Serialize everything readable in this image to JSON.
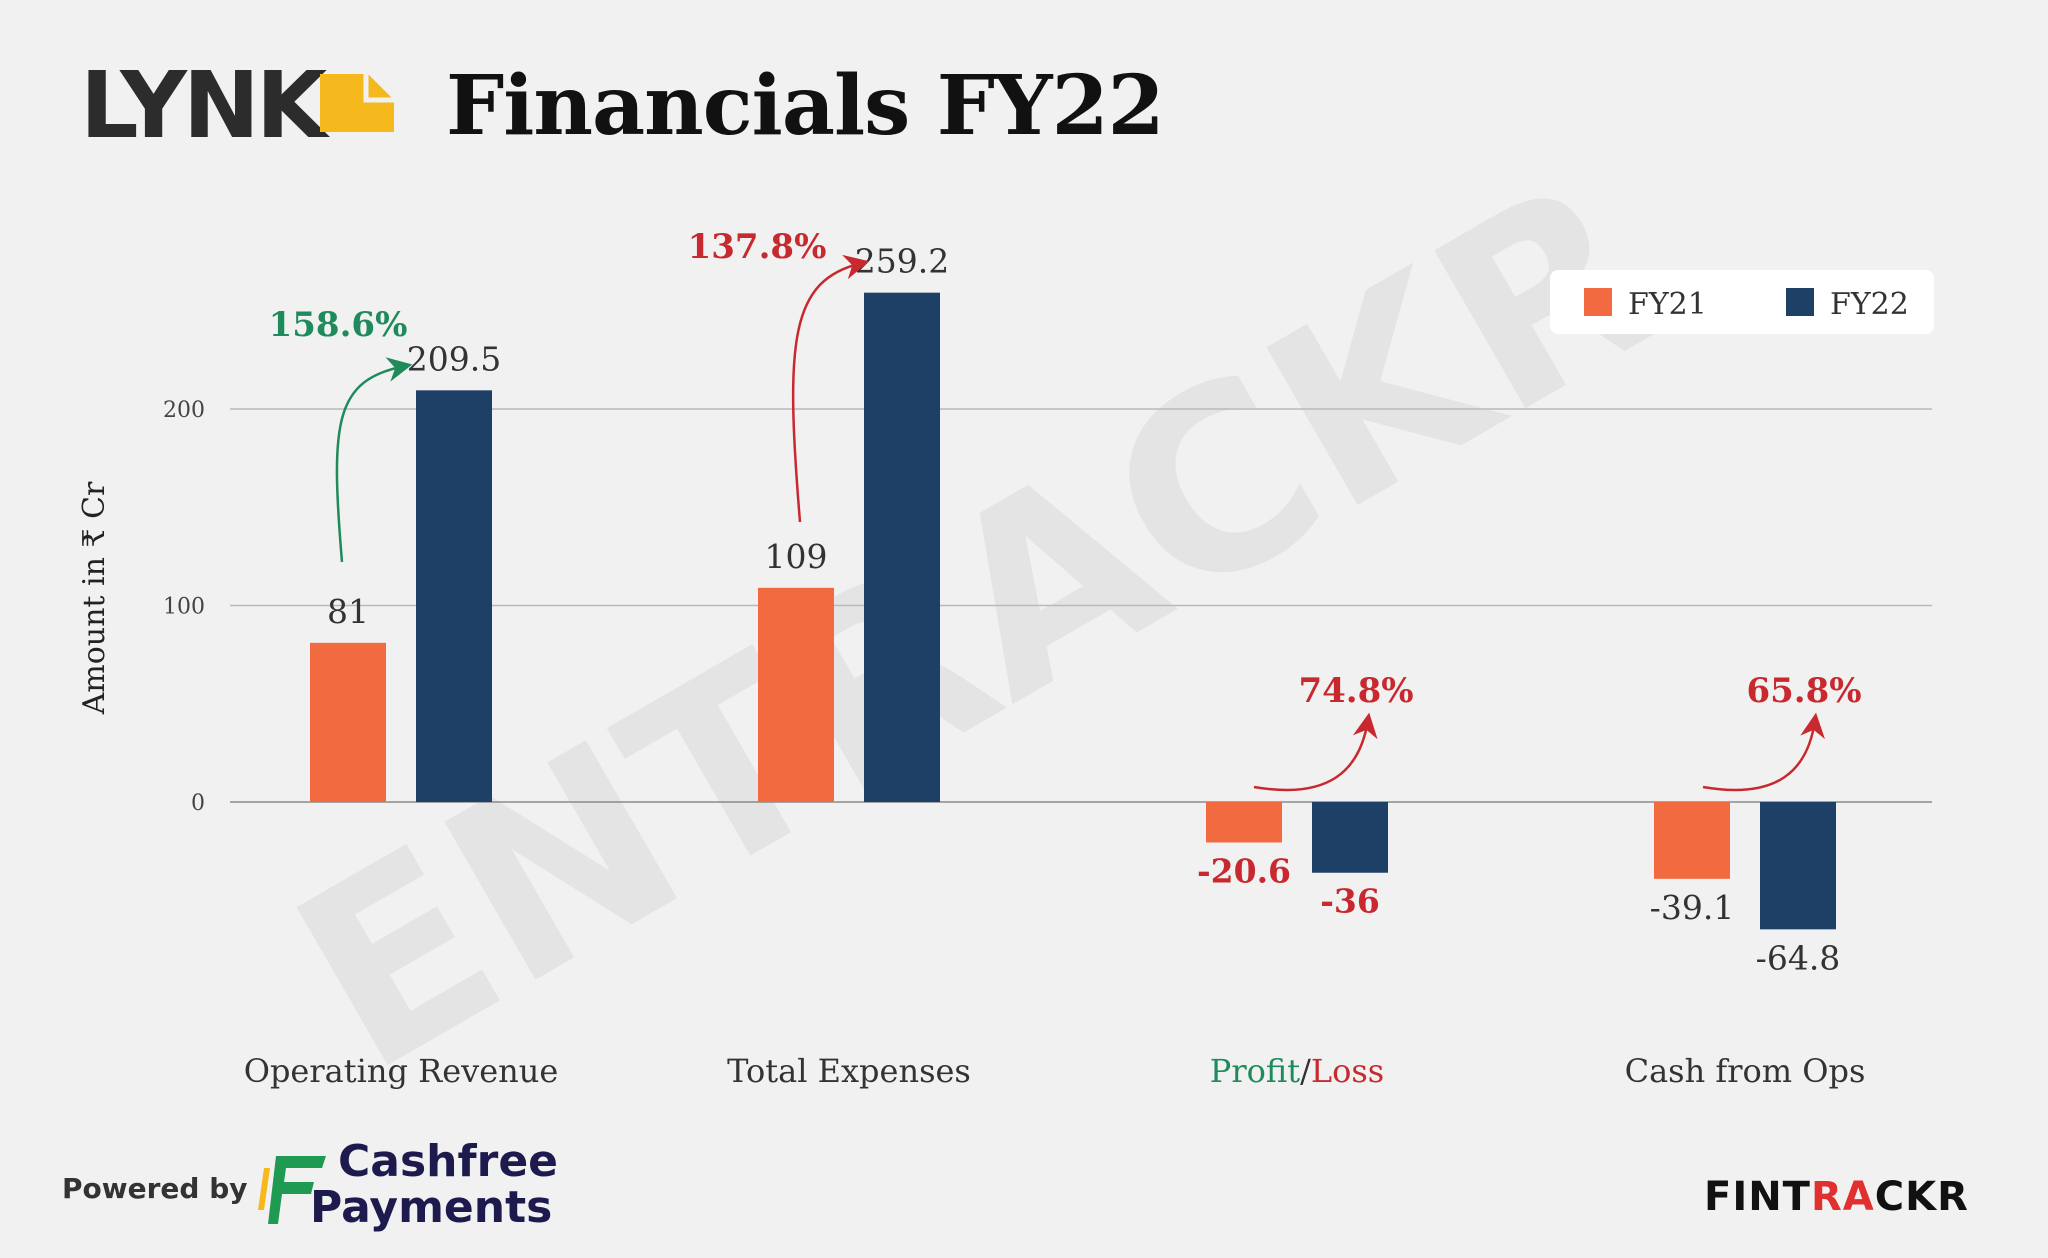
{
  "header": {
    "brand_logo_text": "LYNK",
    "title": "Financials FY22"
  },
  "footer": {
    "powered_by": "Powered by",
    "sponsor_line1": "Cashfree",
    "sponsor_line2": "Payments",
    "publisher": "FINTRACKR"
  },
  "watermark": "ENTRACKR",
  "colors": {
    "fy21": "#f26a3f",
    "fy22": "#1e3f66",
    "growth_green": "#1f8a5b",
    "growth_red": "#c8292f",
    "grid": "#b9b9b9",
    "background": "#f1f1f1"
  },
  "chart_data": {
    "type": "bar",
    "title": "Financials FY22",
    "ylabel": "Amount in ₹ Cr",
    "ylim": [
      -80,
      270
    ],
    "yticks": [
      0,
      100,
      200
    ],
    "grid": true,
    "legend": {
      "position": "top-right",
      "entries": [
        "FY21",
        "FY22"
      ]
    },
    "categories": [
      "Operating Revenue",
      "Total Expenses",
      "Profit/Loss",
      "Cash from Ops"
    ],
    "category_label_parts": [
      [
        {
          "text": "Operating Revenue",
          "color": "#333333"
        }
      ],
      [
        {
          "text": "Total Expenses",
          "color": "#333333"
        }
      ],
      [
        {
          "text": "Profit",
          "color": "#1f8a5b"
        },
        {
          "text": "/",
          "color": "#333333"
        },
        {
          "text": "Loss",
          "color": "#c8292f"
        }
      ],
      [
        {
          "text": "Cash from Ops",
          "color": "#333333"
        }
      ]
    ],
    "series": [
      {
        "name": "FY21",
        "values": [
          81,
          109,
          -20.6,
          -39.1
        ],
        "labels": [
          "81",
          "109",
          "-20.6",
          "-39.1"
        ],
        "label_colors": [
          "#333333",
          "#333333",
          "#c8292f",
          "#333333"
        ]
      },
      {
        "name": "FY22",
        "values": [
          209.5,
          259.2,
          -36,
          -64.8
        ],
        "labels": [
          "209.5",
          "259.2",
          "-36",
          "-64.8"
        ],
        "label_colors": [
          "#333333",
          "#333333",
          "#c8292f",
          "#333333"
        ]
      }
    ],
    "annotations": [
      {
        "category": "Operating Revenue",
        "text": "158.6%",
        "color": "#1f8a5b"
      },
      {
        "category": "Total Expenses",
        "text": "137.8%",
        "color": "#c8292f"
      },
      {
        "category": "Profit/Loss",
        "text": "74.8%",
        "color": "#c8292f"
      },
      {
        "category": "Cash from Ops",
        "text": "65.8%",
        "color": "#c8292f"
      }
    ]
  }
}
